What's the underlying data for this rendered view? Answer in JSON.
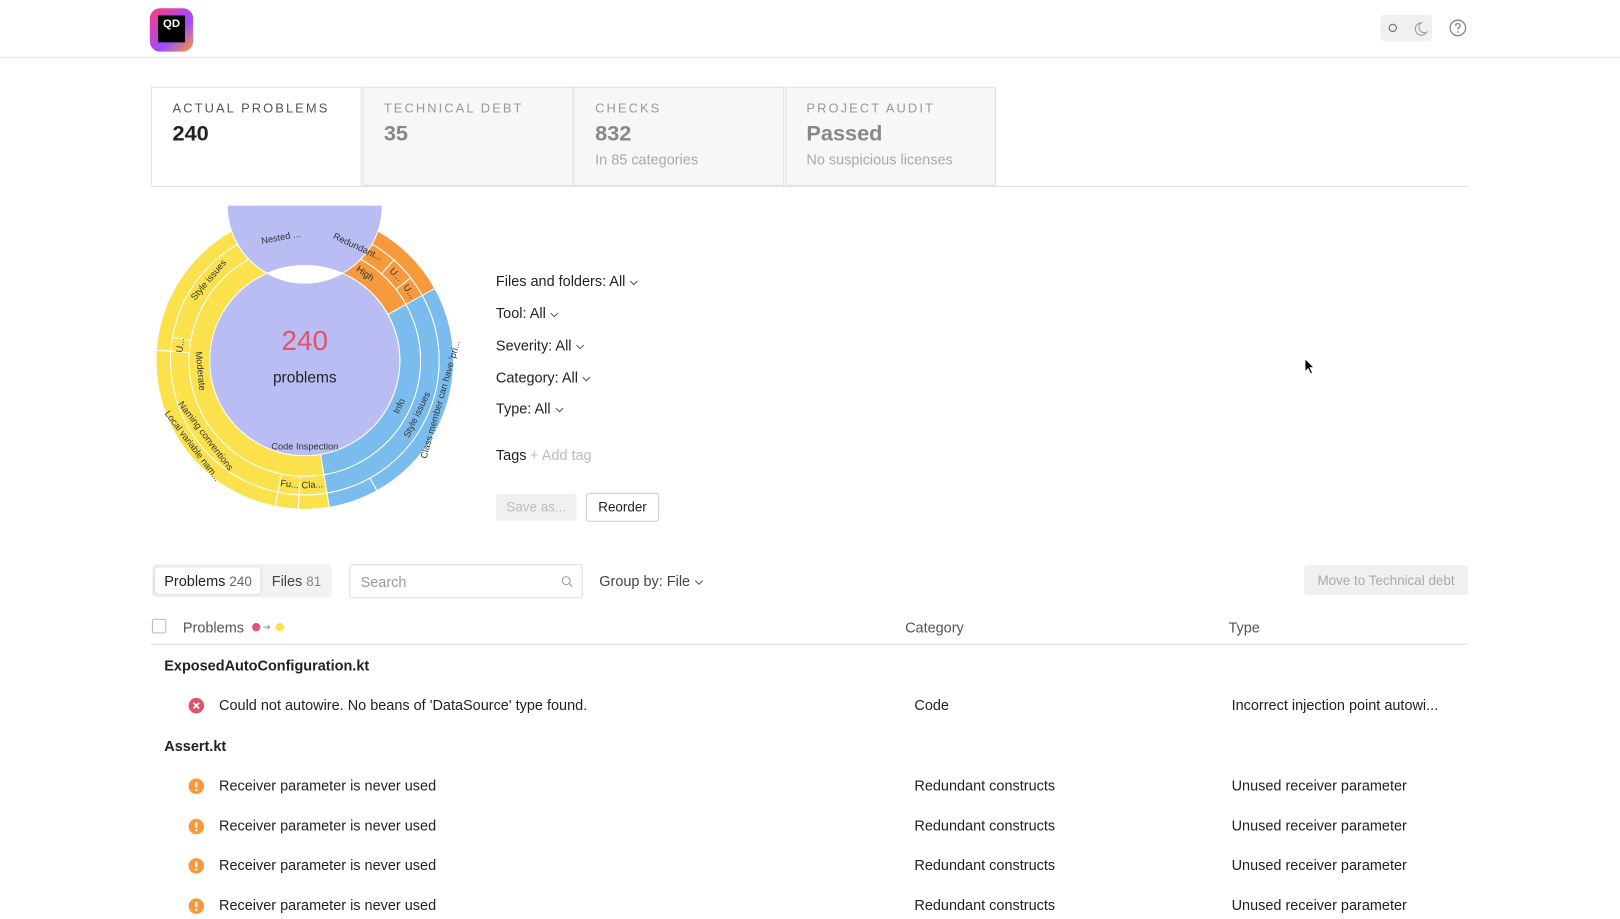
{
  "header": {
    "logo": "QD"
  },
  "tabs": [
    {
      "title": "ACTUAL PROBLEMS",
      "value": "240"
    },
    {
      "title": "TECHNICAL DEBT",
      "value": "35"
    },
    {
      "title": "CHECKS",
      "value": "832",
      "note": "In 85 categories"
    },
    {
      "title": "PROJECT AUDIT",
      "value": "Passed",
      "note": "No suspicious licenses"
    }
  ],
  "sunburst": {
    "center_value": "240",
    "center_label": "problems",
    "rings": [
      [
        {
          "label": "Code Inspection",
          "value": 240,
          "color": "#b9bdf3"
        }
      ],
      [
        {
          "label": null,
          "value": 7,
          "color": "#e5506b"
        },
        {
          "label": "High",
          "value": 35,
          "color": "#f79a3e"
        },
        {
          "label": "Info",
          "value": 73,
          "color": "#7bbcef"
        },
        {
          "label": "Moderate",
          "value": 125,
          "color": "#fbe14c"
        }
      ],
      [
        {
          "label": null,
          "value": 7,
          "color": "#e5506b"
        },
        {
          "label": "Redundant...",
          "value": 22,
          "color": "#f79a3e"
        },
        {
          "label": "U...",
          "value": 7,
          "color": "#f79a3e"
        },
        {
          "label": "U...",
          "value": 6,
          "color": "#f79a3e"
        },
        {
          "label": "Style issues",
          "value": 73,
          "color": "#7bbcef"
        },
        {
          "label": "Cla...",
          "value": 8,
          "color": "#fbe14c"
        },
        {
          "label": "Fu...",
          "value": 6,
          "color": "#fbe14c"
        },
        {
          "label": "Naming conventions",
          "value": 55,
          "color": "#fbe14c"
        },
        {
          "label": "U...",
          "value": 4,
          "color": "#fbe14c"
        },
        {
          "label": "Style issues",
          "value": 40,
          "color": "#fbe14c"
        },
        {
          "label": "Nested ...",
          "value": 12,
          "color": "#fbe14c"
        }
      ],
      [
        {
          "label": null,
          "value": 7,
          "color": "#e5506b"
        },
        {
          "label": null,
          "value": 35,
          "color": "#f79a3e"
        },
        {
          "label": "Class member can have 'pri...",
          "value": 60,
          "color": "#7bbcef"
        },
        {
          "label": null,
          "value": 13,
          "color": "#7bbcef"
        },
        {
          "label": null,
          "value": 8,
          "color": "#fbe14c"
        },
        {
          "label": null,
          "value": 6,
          "color": "#fbe14c"
        },
        {
          "label": "Local variable nam...",
          "value": 55,
          "color": "#fbe14c"
        },
        {
          "label": null,
          "value": 56,
          "color": "#fbe14c"
        }
      ]
    ]
  },
  "filters": [
    "Files and folders: All",
    "Tool: All",
    "Severity: All",
    "Category: All",
    "Type: All"
  ],
  "tags": {
    "label": "Tags",
    "add": "+ Add tag"
  },
  "buttons": {
    "save": "Save as...",
    "reorder": "Reorder"
  },
  "toolbar": {
    "problems_tab": "Problems",
    "problems_count": "240",
    "files_tab": "Files",
    "files_count": "81",
    "search": "Search",
    "group_by": "Group by: File",
    "move": "Move to Technical debt"
  },
  "columns": [
    "Problems",
    "Category",
    "Type"
  ],
  "groups": [
    {
      "file": "ExposedAutoConfiguration.kt",
      "rows": [
        {
          "icon": "error",
          "problem": "Could not autowire. No beans of 'DataSource' type found.",
          "category": "Code",
          "type": "Incorrect injection point autowi..."
        }
      ]
    },
    {
      "file": "Assert.kt",
      "rows": [
        {
          "icon": "warning",
          "problem": "Receiver parameter is never used",
          "category": "Redundant constructs",
          "type": "Unused receiver parameter"
        },
        {
          "icon": "warning",
          "problem": "Receiver parameter is never used",
          "category": "Redundant constructs",
          "type": "Unused receiver parameter"
        },
        {
          "icon": "warning",
          "problem": "Receiver parameter is never used",
          "category": "Redundant constructs",
          "type": "Unused receiver parameter"
        },
        {
          "icon": "warning",
          "problem": "Receiver parameter is never used",
          "category": "Redundant constructs",
          "type": "Unused receiver parameter"
        }
      ]
    }
  ]
}
